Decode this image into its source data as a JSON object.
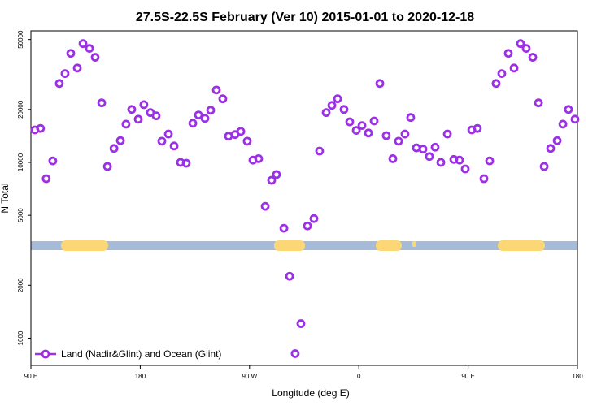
{
  "chart_data": {
    "type": "scatter",
    "title": "27.5S-22.5S February (Ver 10)   2015-01-01 to 2020-12-18",
    "x_label": "Longitude (deg E)",
    "y_label": "N Total",
    "log_y": true,
    "legend": "bottom-left",
    "xlim": [
      90,
      540
    ],
    "xticks": [
      {
        "value": 90,
        "label": "90 E"
      },
      180,
      {
        "value": 270,
        "label": "90 W"
      },
      {
        "value": 360,
        "label": "0"
      },
      {
        "value": 450,
        "label": "90 E"
      },
      {
        "value": 540,
        "label": "180"
      }
    ],
    "ylim": [
      700,
      56000
    ],
    "yticks": [
      1000,
      2000,
      5000,
      10000,
      20000,
      50000
    ],
    "x": [
      93.3,
      97.9,
      102.6,
      108,
      113.4,
      118.1,
      122.8,
      128.2,
      132.9,
      138.2,
      142.9,
      148.3,
      153,
      158.4,
      163.7,
      168.3,
      173,
      178.4,
      183,
      188.4,
      193.1,
      197.8,
      203.2,
      207.9,
      213.2,
      217.9,
      223.3,
      228,
      233.3,
      238,
      242.7,
      248,
      252.7,
      258.1,
      262.8,
      268.1,
      272.8,
      277.5,
      282.9,
      288.2,
      292.2,
      298.3,
      303,
      307.6,
      312.3,
      317.7,
      323,
      327.7,
      333.1,
      337.8,
      342.5,
      347.8,
      352.5,
      357.9,
      362.6,
      367.9,
      372.6,
      377.3,
      382.6,
      388,
      392.7,
      398,
      402.7,
      407.4,
      412.8,
      418.1,
      422.8,
      427.5,
      432.9,
      438.2,
      442.9,
      447.6,
      453,
      457.6,
      463,
      467.7,
      473,
      477.7,
      483.1,
      487.8,
      493.1,
      497.8,
      503.2,
      507.9,
      512.6,
      517.9,
      523.3,
      528,
      532.6,
      538
    ],
    "series": [
      {
        "name": "Land (Nadir&Glint) and Ocean (Glint)",
        "color": "#9b30e6",
        "values": [
          15300,
          15600,
          8080,
          10200,
          28100,
          32000,
          41700,
          34400,
          47400,
          44500,
          39600,
          21800,
          9480,
          12000,
          13300,
          16500,
          20000,
          17600,
          21300,
          19200,
          18400,
          13200,
          14500,
          12400,
          10000,
          9890,
          16700,
          18600,
          17800,
          19800,
          25800,
          23000,
          14100,
          14400,
          15000,
          13200,
          10300,
          10500,
          5620,
          7910,
          8530,
          4220,
          2250,
          817,
          1210,
          4350,
          4790,
          11600,
          19200,
          21100,
          23000,
          20000,
          17000,
          15200,
          16200,
          14700,
          17200,
          28100,
          14200,
          10500,
          13200,
          14500,
          18000,
          12100,
          11900,
          10800,
          12200,
          10000,
          14500,
          10400,
          10300,
          9180,
          15300,
          15600,
          8080,
          10200,
          28100,
          32000,
          41700,
          34400,
          47400,
          44500,
          39600,
          21800,
          9480,
          12000,
          13300,
          16500,
          20000,
          17600
        ]
      }
    ]
  }
}
